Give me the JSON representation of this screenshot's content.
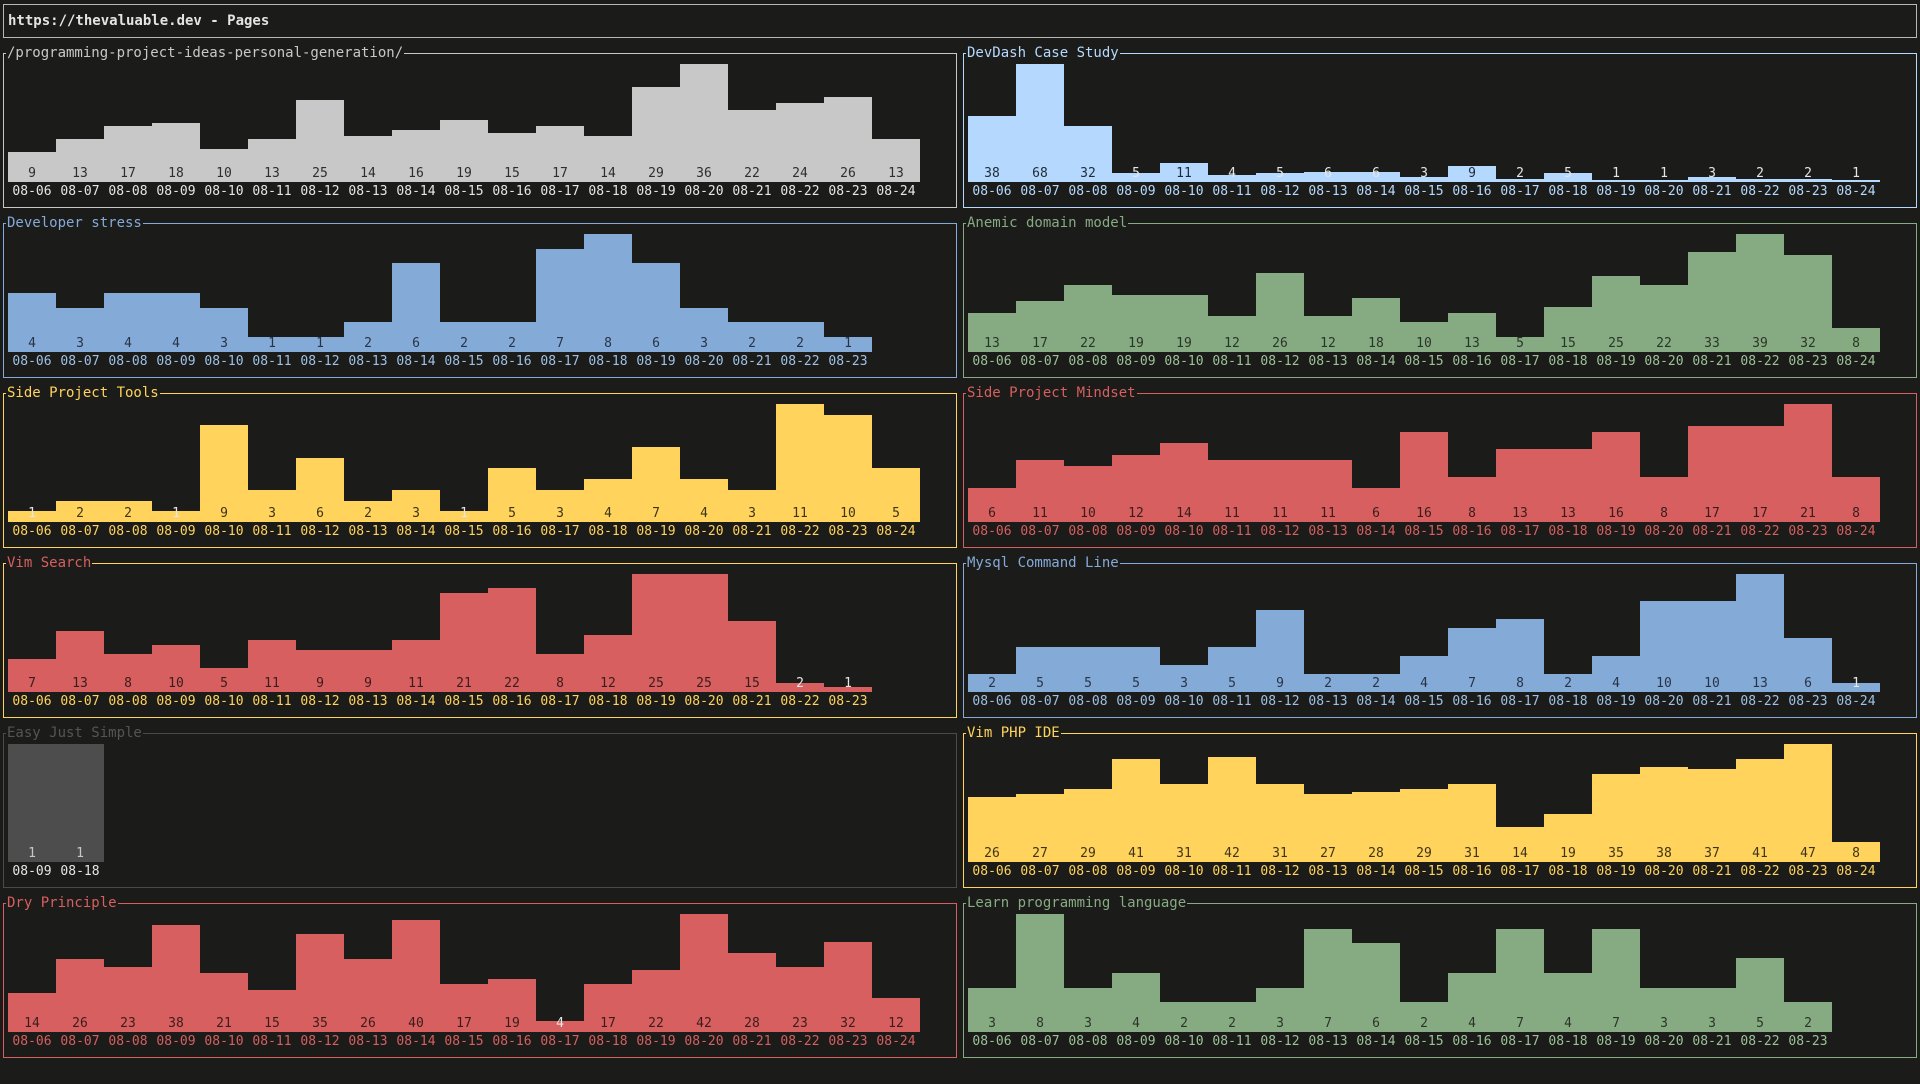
{
  "window": {
    "title": "https://thevaluable.dev - Pages"
  },
  "panels": [
    {
      "title": "/programming-project-ideas-personal-generation/",
      "color": "#c8c8c8",
      "title_color": "#c8c8c8",
      "value_color": "#2d2d2d",
      "date_color": "#e6e6e6",
      "dates": [
        "08-06",
        "08-07",
        "08-08",
        "08-09",
        "08-10",
        "08-11",
        "08-12",
        "08-13",
        "08-14",
        "08-15",
        "08-16",
        "08-17",
        "08-18",
        "08-19",
        "08-20",
        "08-21",
        "08-22",
        "08-23",
        "08-24"
      ],
      "values": [
        9,
        13,
        17,
        18,
        10,
        13,
        25,
        14,
        16,
        19,
        15,
        17,
        14,
        29,
        36,
        22,
        24,
        26,
        13
      ],
      "max": 36
    },
    {
      "title": "DevDash Case Study",
      "color": "#b5d9fe",
      "title_color": "#b5d9fe",
      "value_color": "#1f2a36",
      "date_color": "#b5d9fe",
      "dates": [
        "08-06",
        "08-07",
        "08-08",
        "08-09",
        "08-10",
        "08-11",
        "08-12",
        "08-13",
        "08-14",
        "08-15",
        "08-16",
        "08-17",
        "08-18",
        "08-19",
        "08-20",
        "08-21",
        "08-22",
        "08-23",
        "08-24"
      ],
      "values": [
        38,
        68,
        32,
        5,
        11,
        4,
        5,
        6,
        6,
        3,
        9,
        2,
        5,
        1,
        1,
        3,
        2,
        2,
        1
      ],
      "max": 68
    },
    {
      "title": "Developer stress",
      "color": "#84aad8",
      "title_color": "#84aad8",
      "value_color": "#273446",
      "date_color": "#9fc0e6",
      "dates": [
        "08-06",
        "08-07",
        "08-08",
        "08-09",
        "08-10",
        "08-11",
        "08-12",
        "08-13",
        "08-14",
        "08-15",
        "08-16",
        "08-17",
        "08-18",
        "08-19",
        "08-20",
        "08-21",
        "08-22",
        "08-23"
      ],
      "values": [
        4,
        3,
        4,
        4,
        3,
        1,
        1,
        2,
        6,
        2,
        2,
        7,
        8,
        6,
        3,
        2,
        2,
        1
      ],
      "max": 8
    },
    {
      "title": "Anemic domain model",
      "color": "#86ab82",
      "title_color": "#86ab82",
      "value_color": "#2a3528",
      "date_color": "#9cc197",
      "dates": [
        "08-06",
        "08-07",
        "08-08",
        "08-09",
        "08-10",
        "08-11",
        "08-12",
        "08-13",
        "08-14",
        "08-15",
        "08-16",
        "08-17",
        "08-18",
        "08-19",
        "08-20",
        "08-21",
        "08-22",
        "08-23",
        "08-24"
      ],
      "values": [
        13,
        17,
        22,
        19,
        19,
        12,
        26,
        12,
        18,
        10,
        13,
        5,
        15,
        25,
        22,
        33,
        39,
        32,
        8
      ],
      "max": 39
    },
    {
      "title": "Side Project Tools",
      "color": "#ffd35c",
      "title_color": "#ffd35c",
      "value_color": "#3e3418",
      "date_color": "#ffd35c",
      "dates": [
        "08-06",
        "08-07",
        "08-08",
        "08-09",
        "08-10",
        "08-11",
        "08-12",
        "08-13",
        "08-14",
        "08-15",
        "08-16",
        "08-17",
        "08-18",
        "08-19",
        "08-20",
        "08-21",
        "08-22",
        "08-23",
        "08-24"
      ],
      "values": [
        1,
        2,
        2,
        1,
        9,
        3,
        6,
        2,
        3,
        1,
        5,
        3,
        4,
        7,
        4,
        3,
        11,
        10,
        5
      ],
      "max": 11
    },
    {
      "title": "Side Project Mindset",
      "color": "#d75f5f",
      "title_color": "#d75f5f",
      "value_color": "#3b1c1c",
      "date_color": "#d75f5f",
      "dates": [
        "08-06",
        "08-07",
        "08-08",
        "08-09",
        "08-10",
        "08-11",
        "08-12",
        "08-13",
        "08-14",
        "08-15",
        "08-16",
        "08-17",
        "08-18",
        "08-19",
        "08-20",
        "08-21",
        "08-22",
        "08-23",
        "08-24"
      ],
      "values": [
        6,
        11,
        10,
        12,
        14,
        11,
        11,
        11,
        6,
        16,
        8,
        13,
        13,
        16,
        8,
        17,
        17,
        21,
        8
      ],
      "max": 21
    },
    {
      "title": "Vim Search",
      "color": "#d75f5f",
      "title_color": "#d75f5f",
      "border_color": "#ffd35c",
      "value_color": "#3b1c1c",
      "date_color": "#ffd35c",
      "dates": [
        "08-06",
        "08-07",
        "08-08",
        "08-09",
        "08-10",
        "08-11",
        "08-12",
        "08-13",
        "08-14",
        "08-15",
        "08-16",
        "08-17",
        "08-18",
        "08-19",
        "08-20",
        "08-21",
        "08-22",
        "08-23"
      ],
      "values": [
        7,
        13,
        8,
        10,
        5,
        11,
        9,
        9,
        11,
        21,
        22,
        8,
        12,
        25,
        25,
        15,
        2,
        1
      ],
      "max": 25
    },
    {
      "title": "Mysql Command Line",
      "color": "#84aad8",
      "title_color": "#84aad8",
      "value_color": "#273446",
      "date_color": "#9fc0e6",
      "dates": [
        "08-06",
        "08-07",
        "08-08",
        "08-09",
        "08-10",
        "08-11",
        "08-12",
        "08-13",
        "08-14",
        "08-15",
        "08-16",
        "08-17",
        "08-18",
        "08-19",
        "08-20",
        "08-21",
        "08-22",
        "08-23",
        "08-24"
      ],
      "values": [
        2,
        5,
        5,
        5,
        3,
        5,
        9,
        2,
        2,
        4,
        7,
        8,
        2,
        4,
        10,
        10,
        13,
        6,
        1
      ],
      "max": 13
    },
    {
      "title": "Easy Just Simple",
      "color": "#4d4d4d",
      "title_color": "#555555",
      "border_color": "#4a4a4a",
      "value_color": "#c8c8c8",
      "date_color": "#e6e6e6",
      "dates": [
        "08-09",
        "08-18"
      ],
      "values": [
        1,
        1
      ],
      "max": 1
    },
    {
      "title": "Vim PHP IDE",
      "color": "#ffd35c",
      "title_color": "#ffd35c",
      "value_color": "#3e3418",
      "date_color": "#ffd35c",
      "dates": [
        "08-06",
        "08-07",
        "08-08",
        "08-09",
        "08-10",
        "08-11",
        "08-12",
        "08-13",
        "08-14",
        "08-15",
        "08-16",
        "08-17",
        "08-18",
        "08-19",
        "08-20",
        "08-21",
        "08-22",
        "08-23",
        "08-24"
      ],
      "values": [
        26,
        27,
        29,
        41,
        31,
        42,
        31,
        27,
        28,
        29,
        31,
        14,
        19,
        35,
        38,
        37,
        41,
        47,
        8
      ],
      "max": 47
    },
    {
      "title": "Dry Principle",
      "color": "#d75f5f",
      "title_color": "#d75f5f",
      "value_color": "#3b1c1c",
      "date_color": "#d75f5f",
      "dates": [
        "08-06",
        "08-07",
        "08-08",
        "08-09",
        "08-10",
        "08-11",
        "08-12",
        "08-13",
        "08-14",
        "08-15",
        "08-16",
        "08-17",
        "08-18",
        "08-19",
        "08-20",
        "08-21",
        "08-22",
        "08-23",
        "08-24"
      ],
      "values": [
        14,
        26,
        23,
        38,
        21,
        15,
        35,
        26,
        40,
        17,
        19,
        4,
        17,
        22,
        42,
        28,
        23,
        32,
        12
      ],
      "max": 42
    },
    {
      "title": "Learn programming language",
      "color": "#86ab82",
      "title_color": "#86ab82",
      "value_color": "#2a3528",
      "date_color": "#9cc197",
      "dates": [
        "08-06",
        "08-07",
        "08-08",
        "08-09",
        "08-10",
        "08-11",
        "08-12",
        "08-13",
        "08-14",
        "08-15",
        "08-16",
        "08-17",
        "08-18",
        "08-19",
        "08-20",
        "08-21",
        "08-22",
        "08-23"
      ],
      "values": [
        3,
        8,
        3,
        4,
        2,
        2,
        3,
        7,
        6,
        2,
        4,
        7,
        4,
        7,
        3,
        3,
        5,
        2
      ],
      "max": 8
    }
  ]
}
